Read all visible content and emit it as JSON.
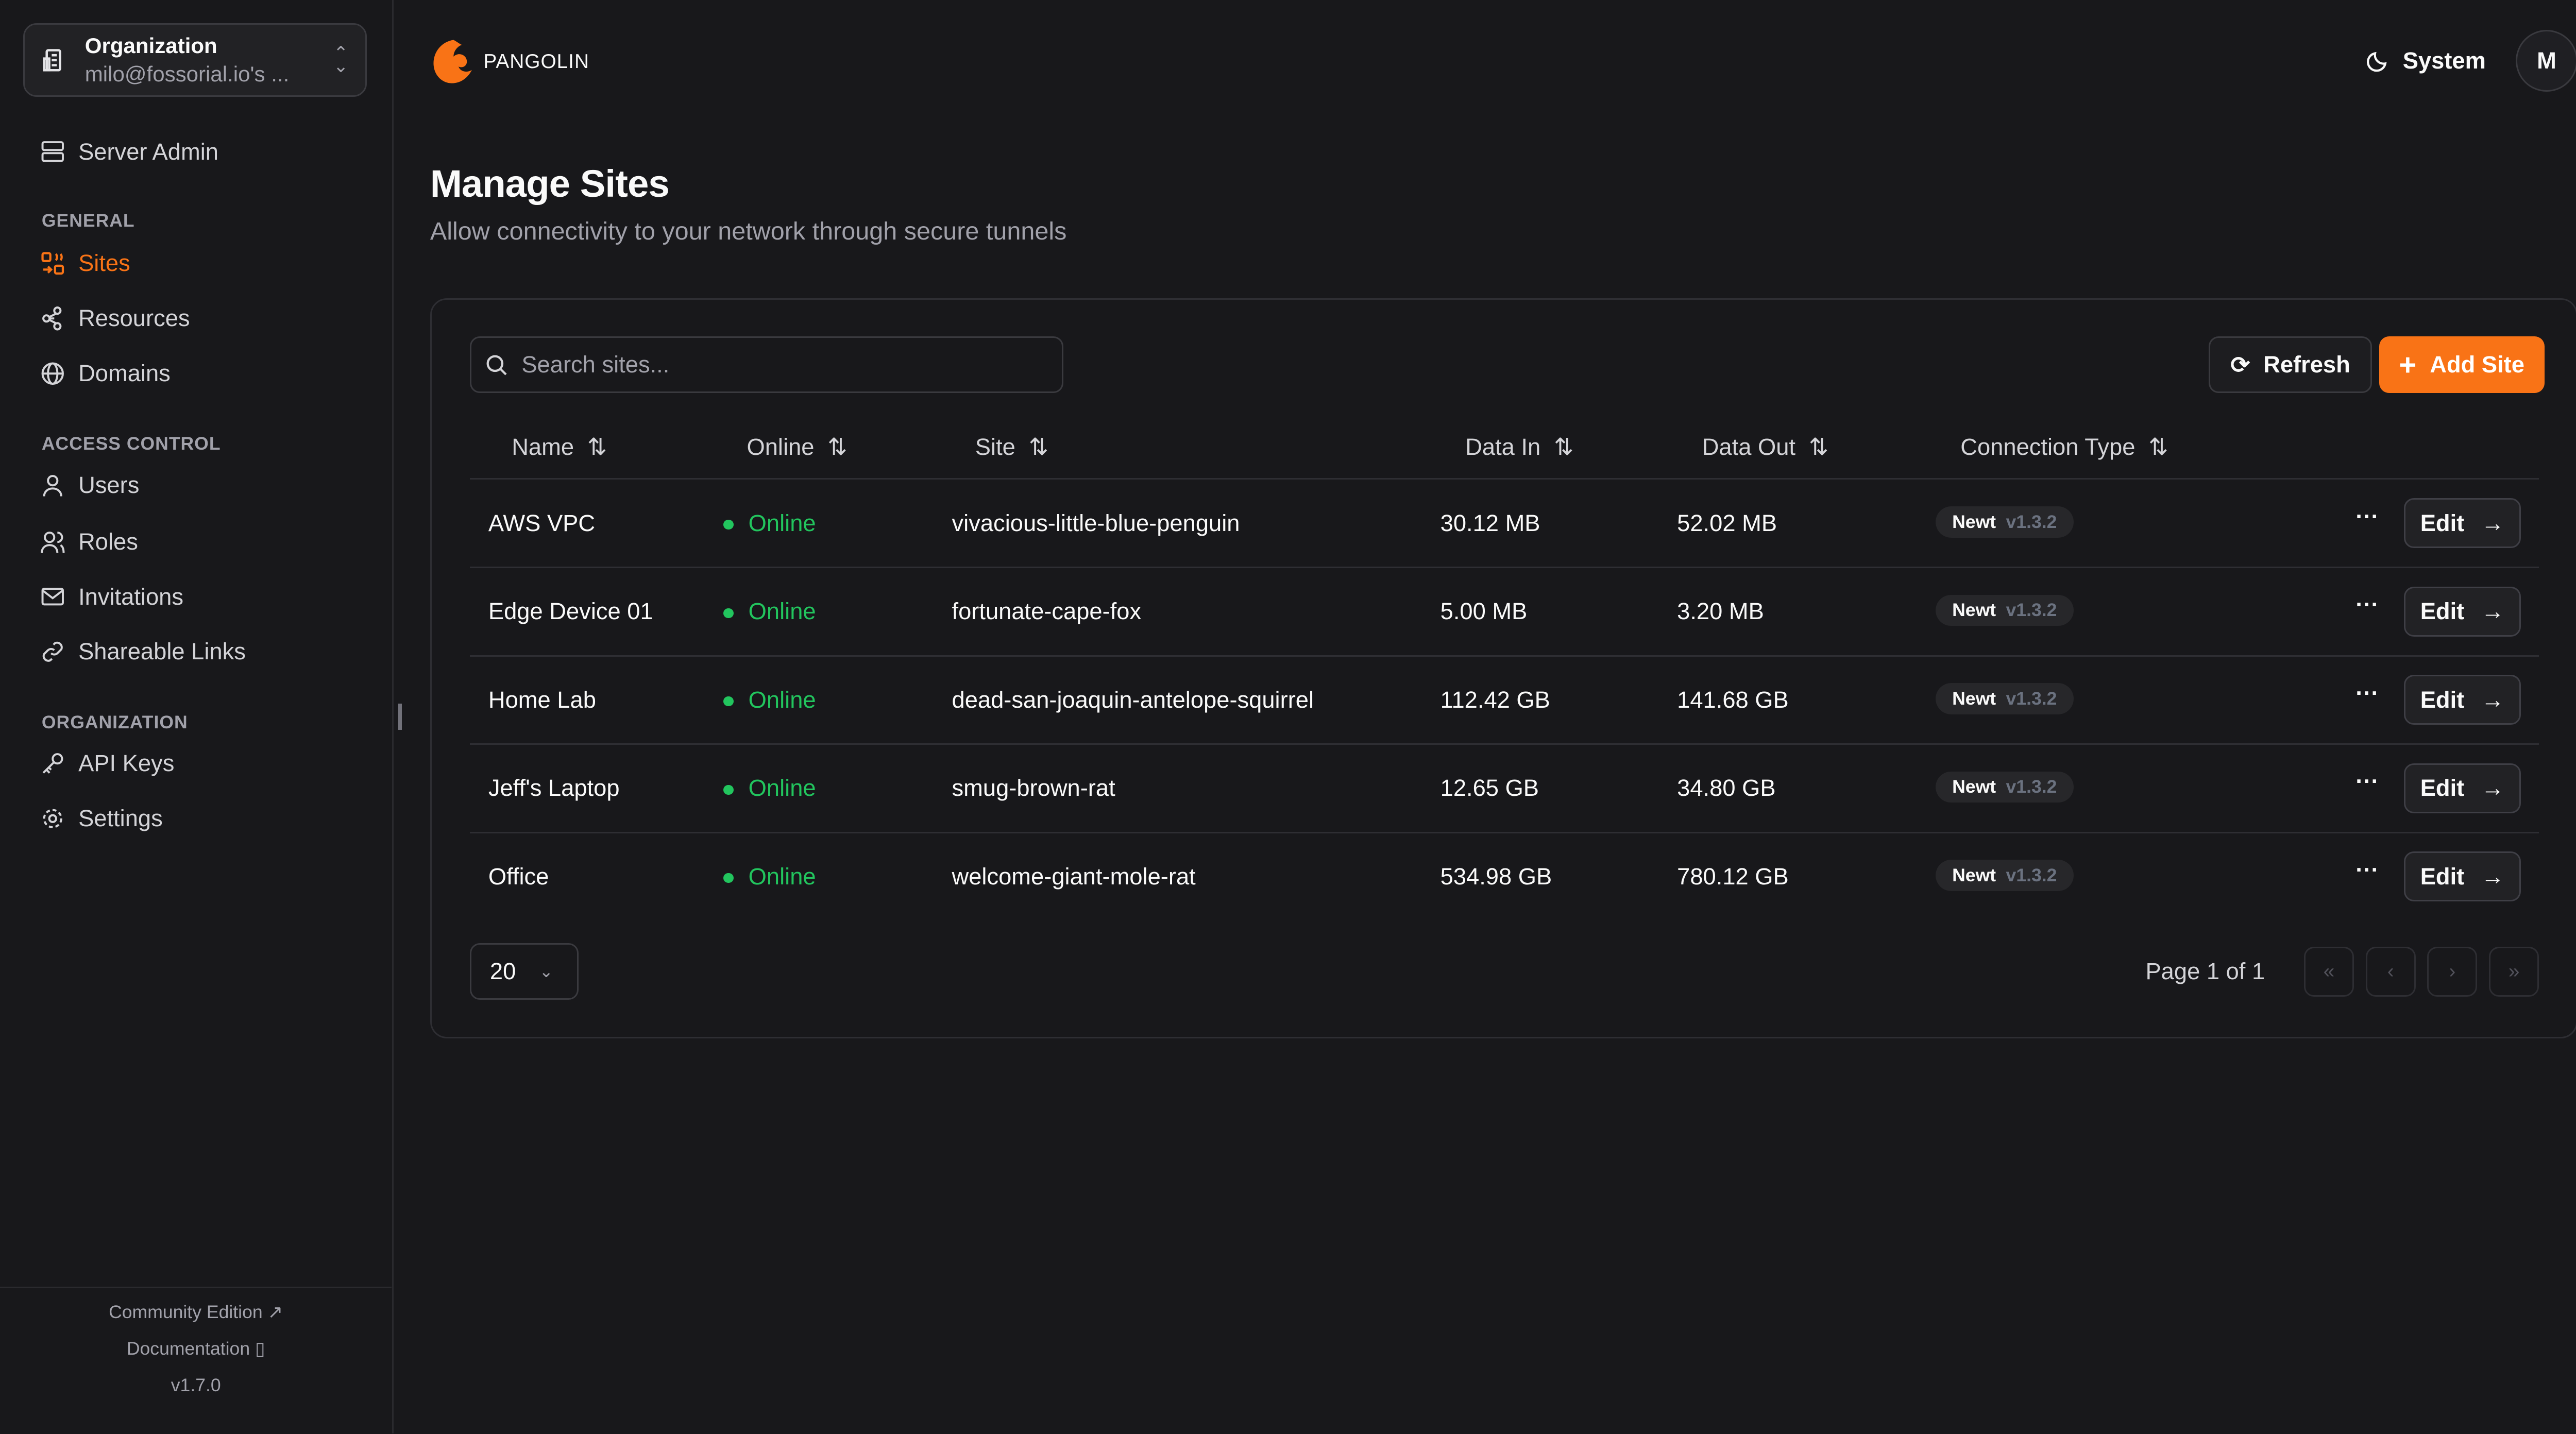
{
  "org": {
    "title": "Organization",
    "subtitle": "milo@fossorial.io's ..."
  },
  "sidebar": {
    "server_admin": "Server Admin",
    "sections": {
      "general": "GENERAL",
      "access": "ACCESS CONTROL",
      "organization": "ORGANIZATION"
    },
    "items": [
      {
        "label": "Sites",
        "active": true
      },
      {
        "label": "Resources"
      },
      {
        "label": "Domains"
      },
      {
        "label": "Users"
      },
      {
        "label": "Roles"
      },
      {
        "label": "Invitations"
      },
      {
        "label": "Shareable Links"
      },
      {
        "label": "API Keys"
      },
      {
        "label": "Settings"
      }
    ],
    "footer": {
      "community": "Community Edition",
      "docs": "Documentation",
      "version": "v1.7.0"
    }
  },
  "header": {
    "brand": "PANGOLIN",
    "theme": "System",
    "avatar": "M"
  },
  "page": {
    "title": "Manage Sites",
    "subtitle": "Allow connectivity to your network through secure tunnels"
  },
  "toolbar": {
    "search_placeholder": "Search sites...",
    "refresh": "Refresh",
    "add": "Add Site"
  },
  "table": {
    "columns": [
      "Name",
      "Online",
      "Site",
      "Data In",
      "Data Out",
      "Connection Type"
    ],
    "rows": [
      {
        "name": "AWS VPC",
        "online": "Online",
        "site": "vivacious-little-blue-penguin",
        "in": "30.12 MB",
        "out": "52.02 MB",
        "type": "Newt",
        "ver": "v1.3.2"
      },
      {
        "name": "Edge Device 01",
        "online": "Online",
        "site": "fortunate-cape-fox",
        "in": "5.00 MB",
        "out": "3.20 MB",
        "type": "Newt",
        "ver": "v1.3.2"
      },
      {
        "name": "Home Lab",
        "online": "Online",
        "site": "dead-san-joaquin-antelope-squirrel",
        "in": "112.42 GB",
        "out": "141.68 GB",
        "type": "Newt",
        "ver": "v1.3.2"
      },
      {
        "name": "Jeff's Laptop",
        "online": "Online",
        "site": "smug-brown-rat",
        "in": "12.65 GB",
        "out": "34.80 GB",
        "type": "Newt",
        "ver": "v1.3.2"
      },
      {
        "name": "Office",
        "online": "Online",
        "site": "welcome-giant-mole-rat",
        "in": "534.98 GB",
        "out": "780.12 GB",
        "type": "Newt",
        "ver": "v1.3.2"
      }
    ],
    "edit_label": "Edit"
  },
  "pagination": {
    "page_size": "20",
    "info": "Page 1 of 1"
  },
  "colors": {
    "accent": "#f97316",
    "online": "#22c55e",
    "background": "#18181b"
  }
}
